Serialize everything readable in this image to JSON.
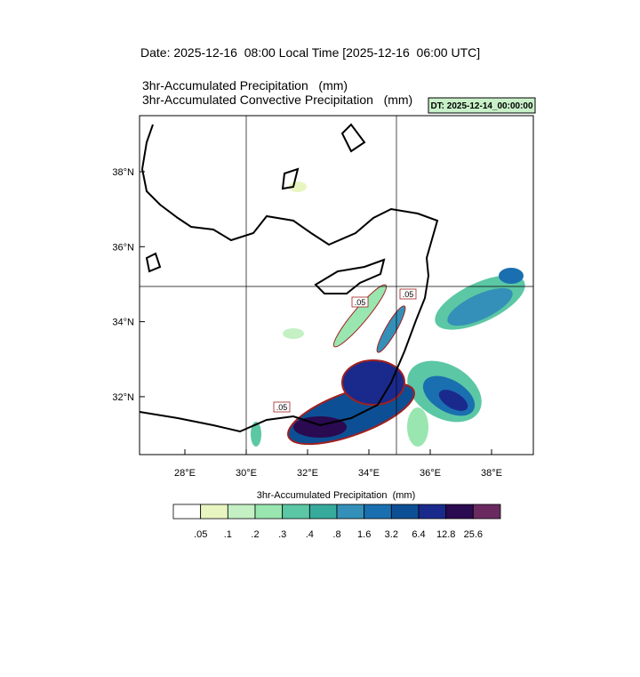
{
  "header": {
    "date_line": "Date: 2025-12-16  08:00 Local Time [2025-12-16  06:00 UTC]",
    "variable_1": "3hr-Accumulated Precipitation   (mm)",
    "variable_2": "3hr-Accumulated Convective Precipitation   (mm)",
    "dt_label": "DT: 2025-12-14_00:00:00"
  },
  "map": {
    "lon_labels": [
      "28°E",
      "30°E",
      "32°E",
      "34°E",
      "36°E",
      "38°E"
    ],
    "lat_labels": [
      "38°N",
      "36°N",
      "34°N",
      "32°N"
    ],
    "contour_labels": [
      ".05",
      ".05",
      ".05"
    ]
  },
  "colorbar": {
    "title": "3hr-Accumulated Precipitation  (mm)",
    "levels": [
      ".05",
      ".1",
      ".2",
      ".3",
      ".4",
      ".8",
      "1.6",
      "3.2",
      "6.4",
      "12.8",
      "25.6"
    ],
    "colors": [
      "#ffffff",
      "#e8f5c0",
      "#c4f0c4",
      "#99e6b0",
      "#5cc7a4",
      "#36ab9c",
      "#3490b8",
      "#1a6fb0",
      "#0d4f94",
      "#1a2a8c",
      "#2a0a50",
      "#6a2a60"
    ]
  }
}
